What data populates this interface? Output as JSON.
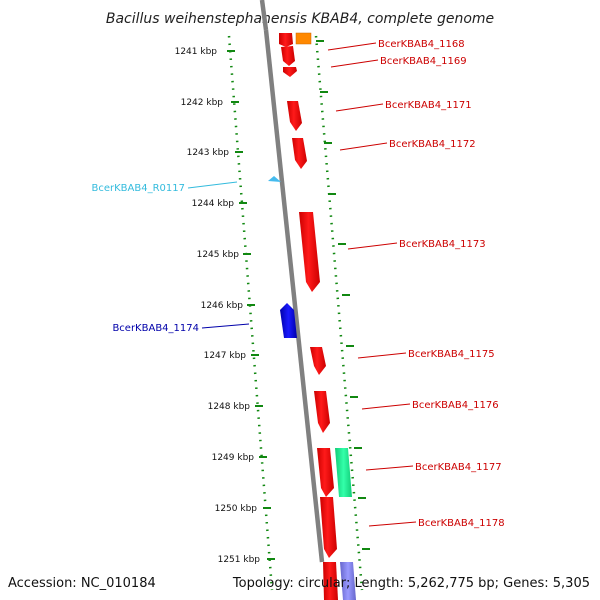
{
  "title": "Bacillus weihenstephanensis KBAB4, complete genome",
  "footer": {
    "accession": "Accession: NC_010184",
    "summary": "Topology: circular; Length: 5,262,775 bp; Genes: 5,305"
  },
  "kbp_labels": [
    "1241 kbp",
    "1242 kbp",
    "1243 kbp",
    "1244 kbp",
    "1245 kbp",
    "1246 kbp",
    "1247 kbp",
    "1248 kbp",
    "1249 kbp",
    "1250 kbp",
    "1251 kbp"
  ],
  "gene_labels": [
    {
      "text": "BcerKBAB4_1168",
      "color": "#cc0000"
    },
    {
      "text": "BcerKBAB4_1169",
      "color": "#cc0000"
    },
    {
      "text": "BcerKBAB4_1171",
      "color": "#cc0000"
    },
    {
      "text": "BcerKBAB4_1172",
      "color": "#cc0000"
    },
    {
      "text": "BcerKBAB4_R0117",
      "color": "#33bbdd"
    },
    {
      "text": "BcerKBAB4_1173",
      "color": "#cc0000"
    },
    {
      "text": "BcerKBAB4_1174",
      "color": "#0000aa"
    },
    {
      "text": "BcerKBAB4_1175",
      "color": "#cc0000"
    },
    {
      "text": "BcerKBAB4_1176",
      "color": "#cc0000"
    },
    {
      "text": "BcerKBAB4_1177",
      "color": "#cc0000"
    },
    {
      "text": "BcerKBAB4_1178",
      "color": "#cc0000"
    }
  ],
  "colors": {
    "cds": "#ff0000",
    "rna": "#44bbee",
    "minus_strand_cds": "#0000ee",
    "orange_feature": "#ff8800",
    "teal_feature": "#22ee99",
    "purple_feature": "#8888ee",
    "backbone": "#808080",
    "tick": "#118811"
  }
}
